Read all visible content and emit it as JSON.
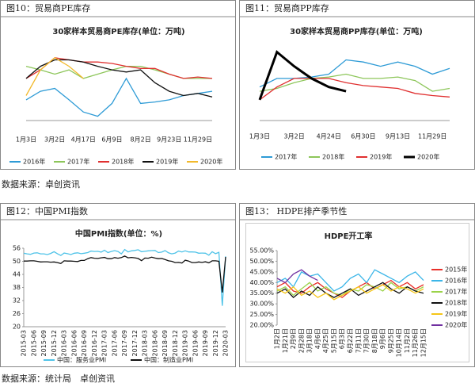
{
  "chart_data": [
    {
      "type": "line",
      "caption": "图10：贸易商PE库存",
      "title": "30家样本贸易商PE库存(单位：万吨)",
      "categories": [
        "1月3日",
        null,
        "3月2日",
        null,
        "4月17日",
        null,
        "6月9日",
        null,
        "8月2日",
        null,
        "9月23日",
        null,
        "11月29日",
        null
      ],
      "ylim": [
        0,
        10
      ],
      "series": [
        {
          "name": "2016年",
          "color": "#2e9bd6",
          "values": [
            2.9,
            4.1,
            4.5,
            2.9,
            1.2,
            0.6,
            2.4,
            5.9,
            2.4,
            2.6,
            2.9,
            3.5,
            3.8,
            4.1
          ]
        },
        {
          "name": "2017年",
          "color": "#8dc65a",
          "values": [
            7.6,
            7.1,
            6.5,
            7.1,
            5.9,
            6.5,
            7.1,
            7.6,
            7.6,
            7.1,
            6.5,
            5.9,
            5.9,
            5.9
          ]
        },
        {
          "name": "2018年",
          "color": "#e03030",
          "values": [
            5.9,
            7.1,
            8.8,
            8.5,
            8.2,
            8.2,
            8.0,
            7.6,
            7.3,
            7.3,
            6.5,
            5.9,
            6.1,
            5.9
          ]
        },
        {
          "name": "2019年",
          "color": "#111111",
          "values": [
            5.9,
            7.6,
            8.5,
            8.5,
            8.2,
            7.6,
            7.1,
            6.8,
            7.1,
            5.3,
            4.1,
            3.5,
            3.8,
            3.3
          ]
        },
        {
          "name": "2020年",
          "color": "#f2b92c",
          "values": [
            3.5,
            7.1,
            8.8,
            7.6,
            5.9,
            null,
            null,
            null,
            null,
            null,
            null,
            null,
            null,
            null
          ]
        }
      ]
    },
    {
      "type": "line",
      "caption": "图11：贸易商PP库存",
      "title": "30家样本贸易商PP库存(单位：万吨)",
      "categories": [
        "1月3日",
        null,
        "3月2日",
        null,
        "4月24日",
        null,
        "6月30日",
        null,
        "9月13日",
        null,
        "11月29日",
        null
      ],
      "ylim": [
        0,
        10
      ],
      "series": [
        {
          "name": "2017年",
          "color": "#2e9bd6",
          "values": [
            4.7,
            5.9,
            5.9,
            6.1,
            6.5,
            8.5,
            8.2,
            7.6,
            8.2,
            7.6,
            6.5,
            7.3
          ]
        },
        {
          "name": "2018年",
          "color": "#8dc65a",
          "values": [
            4.1,
            4.5,
            5.3,
            5.9,
            6.1,
            6.5,
            5.9,
            5.9,
            6.1,
            5.6,
            4.1,
            4.5
          ]
        },
        {
          "name": "2019年",
          "color": "#e03030",
          "values": [
            2.9,
            4.7,
            5.9,
            5.9,
            5.9,
            5.3,
            4.9,
            4.7,
            4.5,
            3.8,
            3.5,
            3.3
          ]
        },
        {
          "name": "2020年",
          "color": "#000000",
          "values": [
            2.9,
            9.6,
            7.6,
            5.9,
            4.7,
            4.1,
            null,
            null,
            null,
            null,
            null,
            null
          ]
        }
      ]
    },
    {
      "type": "line",
      "caption": "图12：中国PMI指数",
      "title": "中国PMI指数(单位：%)",
      "categories": [
        "2015-03",
        null,
        null,
        "2015-06",
        null,
        null,
        "2015-09",
        null,
        null,
        "2015-12",
        null,
        null,
        "2016-03",
        null,
        null,
        "2016-06",
        null,
        null,
        "2016-09",
        null,
        null,
        "2016-12",
        null,
        null,
        "2017-03",
        null,
        null,
        "2017-06",
        null,
        null,
        "2017-09",
        null,
        null,
        "2017-12",
        null,
        null,
        "2018-03",
        null,
        null,
        "2018-06",
        null,
        null,
        "2018-09",
        null,
        null,
        "2018-12",
        null,
        null,
        "2019-03",
        null,
        null,
        "2019-06",
        null,
        null,
        "2019-09",
        null,
        null,
        "2019-12",
        null,
        null,
        "2020-03"
      ],
      "ylim": [
        20,
        56
      ],
      "yticks": [
        20,
        26,
        32,
        38,
        44,
        50,
        56
      ],
      "series": [
        {
          "name": "中国：服务业PMI",
          "color": "#4fc3e8",
          "values": [
            53.7,
            53.4,
            53.2,
            53.8,
            53.9,
            53.4,
            53.4,
            53.1,
            53.6,
            54.4,
            53.5,
            52.7,
            53.8,
            53.5,
            53.1,
            53.7,
            53.9,
            53.5,
            53.7,
            54.0,
            54.7,
            54.5,
            54.6,
            54.2,
            55.1,
            54.0,
            54.5,
            54.9,
            54.5,
            53.4,
            55.4,
            54.3,
            54.8,
            55.0,
            55.3,
            54.4,
            54.6,
            54.8,
            54.9,
            55.0,
            54.0,
            54.2,
            54.9,
            53.9,
            53.4,
            53.8,
            54.7,
            54.3,
            54.8,
            54.3,
            54.3,
            54.2,
            53.7,
            53.8,
            53.7,
            52.8,
            54.4,
            53.5,
            54.1,
            29.6,
            52.3
          ]
        },
        {
          "name": "中国：制造业PMI",
          "color": "#111111",
          "values": [
            50.1,
            50.1,
            50.2,
            50.2,
            50.0,
            49.7,
            49.8,
            49.8,
            49.6,
            49.7,
            49.4,
            49.0,
            50.2,
            50.1,
            50.1,
            50.0,
            49.9,
            50.4,
            50.4,
            51.2,
            51.7,
            51.4,
            51.3,
            51.6,
            51.8,
            51.2,
            51.2,
            51.7,
            51.4,
            51.7,
            52.4,
            51.6,
            51.8,
            51.6,
            51.3,
            50.3,
            51.5,
            51.4,
            51.9,
            51.5,
            51.2,
            51.3,
            50.8,
            50.2,
            50.0,
            49.4,
            49.5,
            49.2,
            50.5,
            50.1,
            49.4,
            49.4,
            49.7,
            49.5,
            49.8,
            49.3,
            50.2,
            50.2,
            50.0,
            35.7,
            52.0
          ]
        }
      ]
    },
    {
      "type": "line",
      "caption": "图13： HDPE排产季节性",
      "title": "HDPE开工率",
      "categories": [
        "1月2日",
        "1月21日",
        "2月9日",
        "2月28日",
        "3月18日",
        "4月6日",
        "4月25日",
        "5月15日",
        "6月3日",
        "6月22日",
        "7月11日",
        "7月30日",
        "8月18日",
        "9月6日",
        "9月25日",
        "10月14日",
        "11月2日",
        "11月26日",
        "12月15日"
      ],
      "ylim": [
        20,
        55
      ],
      "yticks": [
        {
          "value": 20,
          "label": "20.00%"
        },
        {
          "value": 25,
          "label": "25.00%"
        },
        {
          "value": 30,
          "label": "30.00%"
        },
        {
          "value": 35,
          "label": "35.00%"
        },
        {
          "value": 40,
          "label": "40.00%"
        },
        {
          "value": 45,
          "label": "45.00%"
        },
        {
          "value": 50,
          "label": "50.00%"
        },
        {
          "value": 55,
          "label": "55.00%"
        }
      ],
      "series": [
        {
          "name": "2015年",
          "color": "#e8302a",
          "values": [
            38,
            40,
            36,
            35,
            38,
            40,
            37,
            35,
            33,
            36,
            38,
            40,
            37,
            39,
            41,
            38,
            40,
            37,
            39
          ]
        },
        {
          "name": "2016年",
          "color": "#3cb6e8",
          "values": [
            40,
            42,
            38,
            45,
            43,
            44,
            40,
            36,
            38,
            42,
            44,
            40,
            46,
            44,
            42,
            40,
            43,
            45,
            41
          ]
        },
        {
          "name": "2017年",
          "color": "#9bd34a",
          "values": [
            36,
            38,
            34,
            37,
            40,
            36,
            38,
            35,
            34,
            37,
            36,
            39,
            38,
            36,
            40,
            37,
            38,
            36,
            38
          ]
        },
        {
          "name": "2018年",
          "color": "#111111",
          "values": [
            35,
            37,
            33,
            36,
            34,
            38,
            35,
            33,
            35,
            37,
            34,
            36,
            38,
            40,
            37,
            35,
            38,
            36,
            35
          ]
        },
        {
          "name": "2019年",
          "color": "#f5c518",
          "values": [
            37,
            35,
            38,
            34,
            36,
            33,
            35,
            32,
            34,
            36,
            38,
            35,
            37,
            39,
            36,
            38,
            37,
            35,
            37
          ]
        },
        {
          "name": "2020年",
          "color": "#7030a0",
          "values": [
            42,
            40,
            44,
            46,
            43,
            41,
            null,
            null,
            null,
            null,
            null,
            null,
            null,
            null,
            null,
            null,
            null,
            null,
            null
          ]
        }
      ]
    }
  ],
  "sources": [
    "数据来源：卓创资讯",
    "数据来源：统计局　卓创资讯"
  ]
}
